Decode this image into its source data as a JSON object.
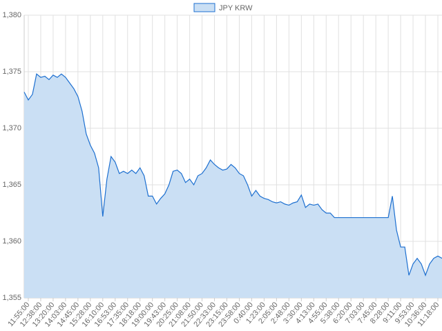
{
  "chart_data": {
    "type": "area",
    "categories": [
      null,
      "11:55:00",
      null,
      null,
      "12:38:00",
      null,
      null,
      "13:20:00",
      null,
      null,
      "14:03:00",
      null,
      null,
      "14:45:00",
      null,
      null,
      "15:28:00",
      null,
      null,
      "16:10:00",
      null,
      null,
      "16:53:00",
      null,
      null,
      "17:35:00",
      null,
      null,
      "18:18:00",
      null,
      null,
      "19:00:00",
      null,
      null,
      "19:43:00",
      null,
      null,
      "20:25:00",
      null,
      null,
      "21:08:00",
      null,
      null,
      "21:50:00",
      null,
      null,
      "22:33:00",
      null,
      null,
      "23:15:00",
      null,
      null,
      "23:58:00",
      null,
      null,
      "0:40:00",
      null,
      null,
      "1:23:00",
      null,
      null,
      "2:05:00",
      null,
      null,
      "2:48:00",
      null,
      null,
      "3:30:00",
      null,
      null,
      "4:13:00",
      null,
      null,
      "4:55:00",
      null,
      null,
      "5:38:00",
      null,
      null,
      "6:20:00",
      null,
      null,
      "7:03:00",
      null,
      null,
      "7:45:00",
      null,
      null,
      "8:28:00",
      null,
      null,
      "9:11:00",
      null,
      null,
      "9:53:00",
      null,
      null,
      "10:36:00",
      null,
      null,
      "11:18:00",
      null
    ],
    "series": [
      {
        "name": "JPY KRW",
        "color": "#1c6fd0",
        "fill": "#cadff4",
        "values": [
          1373.2,
          1372.5,
          1373.0,
          1374.8,
          1374.5,
          1374.6,
          1374.3,
          1374.7,
          1374.5,
          1374.8,
          1374.5,
          1374.0,
          1373.5,
          1372.8,
          1371.5,
          1369.5,
          1368.5,
          1367.8,
          1366.5,
          1362.2,
          1365.5,
          1367.5,
          1367.0,
          1366.0,
          1366.2,
          1366.0,
          1366.3,
          1366.0,
          1366.5,
          1365.8,
          1364.0,
          1364.0,
          1363.3,
          1363.8,
          1364.2,
          1365.0,
          1366.2,
          1366.3,
          1366.0,
          1365.2,
          1365.5,
          1365.0,
          1365.8,
          1366.0,
          1366.5,
          1367.2,
          1366.8,
          1366.5,
          1366.3,
          1366.4,
          1366.8,
          1366.5,
          1366.0,
          1365.8,
          1365.0,
          1364.0,
          1364.5,
          1364.0,
          1363.8,
          1363.7,
          1363.5,
          1363.4,
          1363.5,
          1363.3,
          1363.2,
          1363.4,
          1363.5,
          1364.1,
          1363.0,
          1363.3,
          1363.2,
          1363.3,
          1362.8,
          1362.5,
          1362.5,
          1362.1,
          1362.1,
          1362.1,
          1362.1,
          1362.1,
          1362.1,
          1362.1,
          1362.1,
          1362.1,
          1362.1,
          1362.1,
          1362.1,
          1362.1,
          1362.1,
          1364.0,
          1361.0,
          1359.5,
          1359.5,
          1357.0,
          1358.0,
          1358.5,
          1358.0,
          1357.0,
          1358.0,
          1358.5,
          1358.7,
          1358.5
        ]
      }
    ],
    "ylim": [
      1355,
      1380
    ],
    "yticks": [
      {
        "value": 1355,
        "label": "1,355"
      },
      {
        "value": 1360,
        "label": "1,360"
      },
      {
        "value": 1365,
        "label": "1,365"
      },
      {
        "value": 1370,
        "label": "1,370"
      },
      {
        "value": 1375,
        "label": "1,375"
      },
      {
        "value": 1380,
        "label": "1,380"
      }
    ],
    "grid": true,
    "legend": "top"
  }
}
